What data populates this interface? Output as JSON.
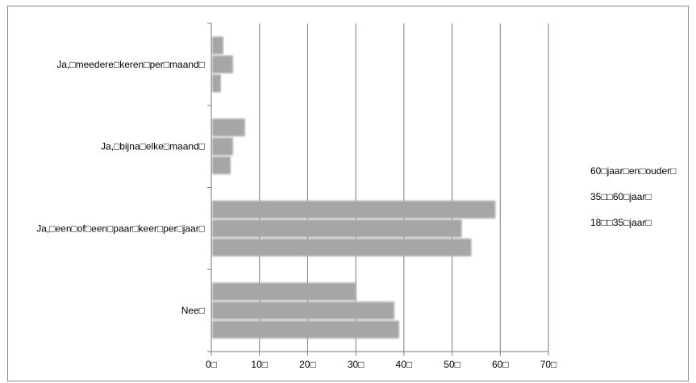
{
  "chart_data": {
    "type": "bar",
    "orientation": "horizontal",
    "categories": [
      "Nee□",
      "Ja,□een□of□een□paar□keer□per□jaar□",
      "Ja,□bijna□elke□maand□",
      "Ja,□meedere□keren□per□maand□"
    ],
    "series": [
      {
        "name": "18□□35□jaar□",
        "values": [
          39,
          54,
          4,
          2
        ]
      },
      {
        "name": "35□□60□jaar□",
        "values": [
          38,
          52,
          4.5,
          4.5
        ]
      },
      {
        "name": "60□jaar□en□ouder□",
        "values": [
          30,
          59,
          7,
          2.5
        ]
      }
    ],
    "xlim": [
      0,
      70
    ],
    "x_ticks": [
      "0□",
      "10□",
      "20□",
      "30□",
      "40□",
      "50□",
      "60□",
      "70□"
    ],
    "grid": true,
    "legend_position": "right",
    "bar_color": "#a6a6a6"
  }
}
